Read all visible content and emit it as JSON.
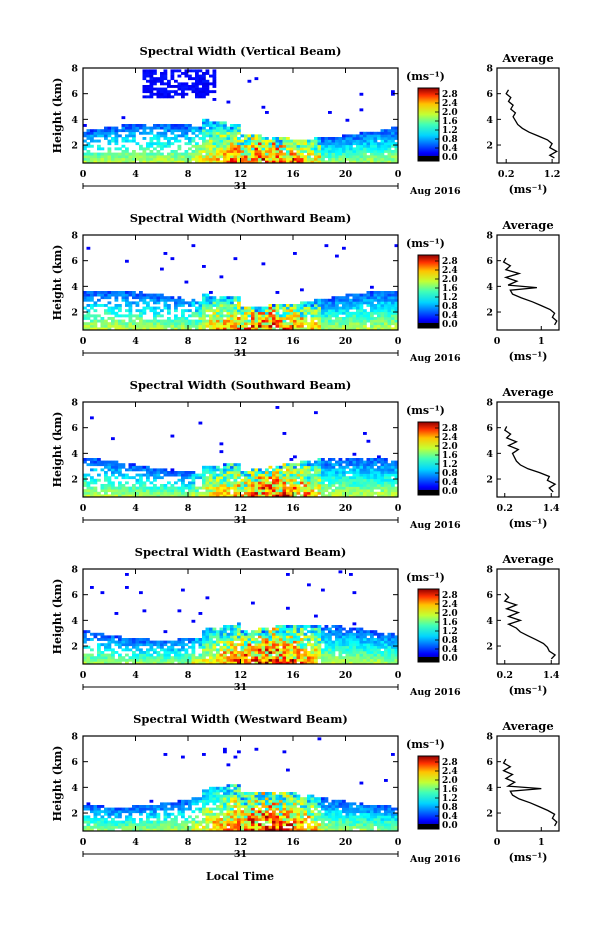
{
  "figure": {
    "xaxis_label": "Local Time",
    "date_label": "Aug 2016",
    "day_label": "31",
    "ylabel": "Height (km)",
    "colorbar_unit": "(ms⁻¹)",
    "avg_title": "Average",
    "avg_unit": "(ms⁻¹)"
  },
  "chart_data": [
    {
      "type": "heatmap",
      "title": "Spectral Width (Vertical Beam)",
      "xlabel": "",
      "ylabel": "Height (km)",
      "x_ticks": [
        "0",
        "4",
        "8",
        "12",
        "16",
        "20",
        "0"
      ],
      "y_ticks": [
        "2",
        "4",
        "6",
        "8"
      ],
      "xlim": [
        0,
        24
      ],
      "ylim": [
        0.6,
        8
      ],
      "colorbar": {
        "unit": "(ms⁻¹)",
        "range": [
          0,
          2.8
        ],
        "ticks": [
          "2.8",
          "2.4",
          "2.0",
          "1.6",
          "1.2",
          "0.8",
          "0.4",
          "0.0"
        ]
      },
      "profile": {
        "title": "Average",
        "xlabel": "(ms⁻¹)",
        "x_ticks": [
          "0.2",
          "1.2"
        ],
        "xlim": [
          0,
          1.35
        ],
        "heights": [
          1.0,
          1.2,
          1.5,
          1.8,
          2.1,
          2.4,
          2.7,
          3.0,
          3.3,
          3.6,
          3.9,
          4.2,
          4.5,
          4.8,
          5.1,
          5.4,
          5.7,
          6.0,
          6.3
        ],
        "values": [
          1.25,
          1.15,
          1.3,
          1.15,
          1.2,
          1.1,
          0.9,
          0.7,
          0.55,
          0.45,
          0.4,
          0.35,
          0.4,
          0.3,
          0.35,
          0.25,
          0.3,
          0.2,
          0.25
        ]
      }
    },
    {
      "type": "heatmap",
      "title": "Spectral Width (Northward Beam)",
      "xlabel": "",
      "ylabel": "Height (km)",
      "x_ticks": [
        "0",
        "4",
        "8",
        "12",
        "16",
        "20",
        "0"
      ],
      "y_ticks": [
        "2",
        "4",
        "6",
        "8"
      ],
      "xlim": [
        0,
        24
      ],
      "ylim": [
        0.6,
        8
      ],
      "colorbar": {
        "unit": "(ms⁻¹)",
        "range": [
          0,
          2.8
        ],
        "ticks": [
          "2.8",
          "2.4",
          "2.0",
          "1.6",
          "1.2",
          "0.8",
          "0.4",
          "0.0"
        ]
      },
      "profile": {
        "title": "Average",
        "xlabel": "(ms⁻¹)",
        "x_ticks": [
          "0",
          "1"
        ],
        "xlim": [
          0,
          1.4
        ],
        "heights": [
          1.0,
          1.3,
          1.6,
          1.9,
          2.2,
          2.5,
          2.8,
          3.1,
          3.4,
          3.7,
          3.9,
          4.1,
          4.4,
          4.7,
          5.0,
          5.3,
          5.6,
          5.9,
          6.2
        ],
        "values": [
          1.3,
          1.35,
          1.25,
          1.3,
          1.2,
          1.0,
          0.8,
          0.55,
          0.35,
          0.3,
          0.9,
          0.25,
          0.45,
          0.2,
          0.5,
          0.2,
          0.3,
          0.15,
          0.2
        ]
      }
    },
    {
      "type": "heatmap",
      "title": "Spectral Width (Southward Beam)",
      "xlabel": "",
      "ylabel": "Height (km)",
      "x_ticks": [
        "0",
        "4",
        "8",
        "12",
        "16",
        "20",
        "0"
      ],
      "y_ticks": [
        "2",
        "4",
        "6",
        "8"
      ],
      "xlim": [
        0,
        24
      ],
      "ylim": [
        0.6,
        8
      ],
      "colorbar": {
        "unit": "(ms⁻¹)",
        "range": [
          0,
          2.8
        ],
        "ticks": [
          "2.8",
          "2.4",
          "2.0",
          "1.6",
          "1.2",
          "0.8",
          "0.4",
          "0.0"
        ]
      },
      "profile": {
        "title": "Average",
        "xlabel": "(ms⁻¹)",
        "x_ticks": [
          "0.2",
          "1.4"
        ],
        "xlim": [
          0,
          1.6
        ],
        "heights": [
          1.0,
          1.3,
          1.6,
          1.9,
          2.2,
          2.5,
          2.8,
          3.1,
          3.4,
          3.7,
          4.0,
          4.3,
          4.6,
          4.9,
          5.2,
          5.5,
          5.8,
          6.1
        ],
        "values": [
          1.45,
          1.35,
          1.5,
          1.3,
          1.35,
          1.1,
          0.8,
          0.6,
          0.5,
          0.45,
          0.4,
          0.55,
          0.3,
          0.5,
          0.25,
          0.35,
          0.2,
          0.25
        ]
      }
    },
    {
      "type": "heatmap",
      "title": "Spectral Width (Eastward Beam)",
      "xlabel": "",
      "ylabel": "Height (km)",
      "x_ticks": [
        "0",
        "4",
        "8",
        "12",
        "16",
        "20",
        "0"
      ],
      "y_ticks": [
        "2",
        "4",
        "6",
        "8"
      ],
      "xlim": [
        0,
        24
      ],
      "ylim": [
        0.6,
        8
      ],
      "colorbar": {
        "unit": "(ms⁻¹)",
        "range": [
          0,
          2.8
        ],
        "ticks": [
          "2.8",
          "2.4",
          "2.0",
          "1.6",
          "1.2",
          "0.8",
          "0.4",
          "0.0"
        ]
      },
      "profile": {
        "title": "Average",
        "xlabel": "(ms⁻¹)",
        "x_ticks": [
          "0.2",
          "1.4"
        ],
        "xlim": [
          0,
          1.6
        ],
        "heights": [
          1.0,
          1.3,
          1.6,
          1.9,
          2.2,
          2.5,
          2.8,
          3.1,
          3.4,
          3.7,
          4.0,
          4.3,
          4.6,
          4.9,
          5.2,
          5.5,
          5.8,
          6.1
        ],
        "values": [
          1.4,
          1.5,
          1.35,
          1.3,
          1.2,
          1.0,
          0.8,
          0.6,
          0.5,
          0.3,
          0.6,
          0.3,
          0.55,
          0.25,
          0.5,
          0.2,
          0.3,
          0.2
        ]
      }
    },
    {
      "type": "heatmap",
      "title": "Spectral Width (Westward Beam)",
      "xlabel": "Local Time",
      "ylabel": "Height (km)",
      "x_ticks": [
        "0",
        "4",
        "8",
        "12",
        "16",
        "20",
        "0"
      ],
      "y_ticks": [
        "2",
        "4",
        "6",
        "8"
      ],
      "xlim": [
        0,
        24
      ],
      "ylim": [
        0.6,
        8
      ],
      "colorbar": {
        "unit": "(ms⁻¹)",
        "range": [
          0,
          2.8
        ],
        "ticks": [
          "2.8",
          "2.4",
          "2.0",
          "1.6",
          "1.2",
          "0.8",
          "0.4",
          "0.0"
        ]
      },
      "profile": {
        "title": "Average",
        "xlabel": "(ms⁻¹)",
        "x_ticks": [
          "0",
          "1"
        ],
        "xlim": [
          0,
          1.4
        ],
        "heights": [
          1.0,
          1.3,
          1.6,
          1.9,
          2.2,
          2.5,
          2.8,
          3.1,
          3.4,
          3.7,
          3.9,
          4.1,
          4.4,
          4.7,
          5.0,
          5.3,
          5.6,
          5.9,
          6.2
        ],
        "values": [
          1.3,
          1.35,
          1.25,
          1.3,
          1.15,
          0.95,
          0.75,
          0.5,
          0.35,
          0.3,
          1.0,
          0.25,
          0.4,
          0.2,
          0.35,
          0.15,
          0.3,
          0.15,
          0.2
        ]
      }
    }
  ]
}
